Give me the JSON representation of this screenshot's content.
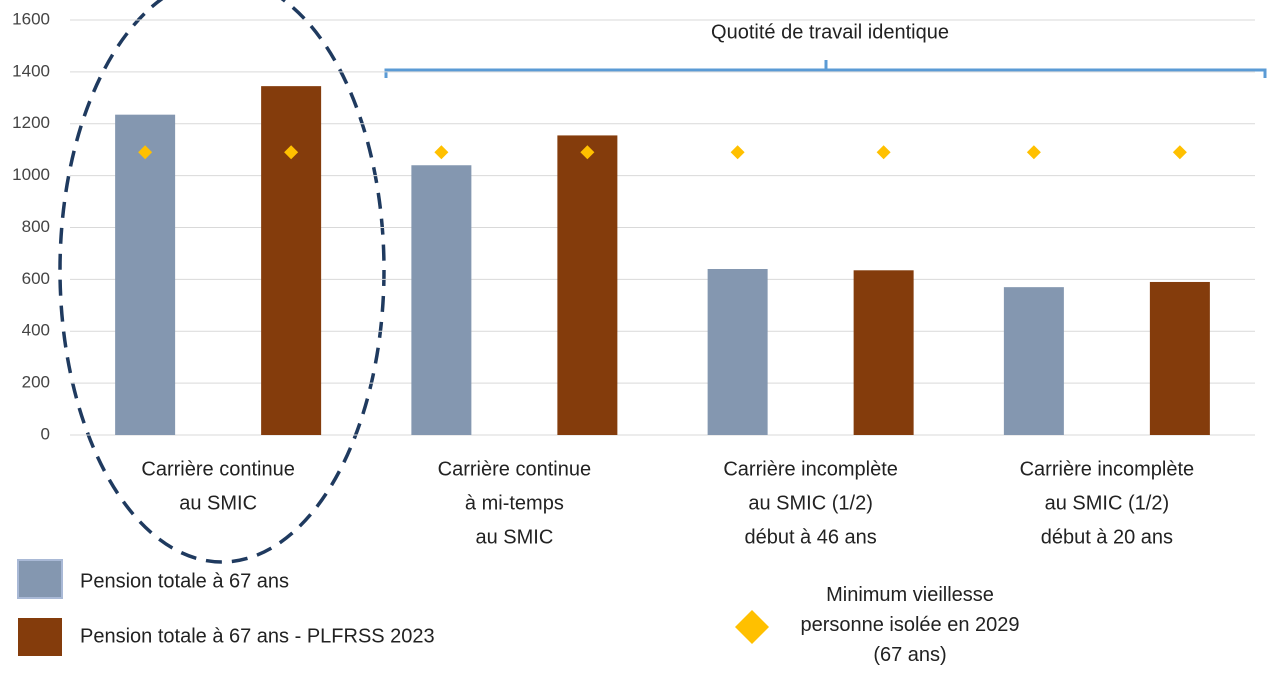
{
  "chart_data": {
    "type": "bar",
    "categories": [
      [
        "Carrière continue",
        "au SMIC"
      ],
      [
        "Carrière continue",
        "à mi-temps",
        "au SMIC"
      ],
      [
        "Carrière incomplète",
        "au SMIC (1/2)",
        "début à 46 ans"
      ],
      [
        "Carrière incomplète",
        "au SMIC (1/2)",
        "début à 20 ans"
      ]
    ],
    "series": [
      {
        "name": "Pension totale à 67 ans",
        "color": "#8497b0",
        "values": [
          1235,
          1040,
          640,
          570
        ]
      },
      {
        "name": "Pension totale à 67 ans - PLFRSS 2023",
        "color": "#843c0c",
        "values": [
          1345,
          1155,
          635,
          590
        ]
      },
      {
        "name": "Minimum vieillesse personne isolée en 2029 (67 ans)",
        "color": "#ffc000",
        "type": "scatter",
        "values": [
          1090,
          1090,
          1090,
          1090,
          1090,
          1090,
          1090,
          1090
        ]
      }
    ],
    "annotations": [
      "Quotité de travail identique"
    ],
    "ylim": [
      0,
      1600
    ],
    "yticks": [
      0,
      200,
      400,
      600,
      800,
      1000,
      1200,
      1400,
      1600
    ],
    "grid": true
  }
}
